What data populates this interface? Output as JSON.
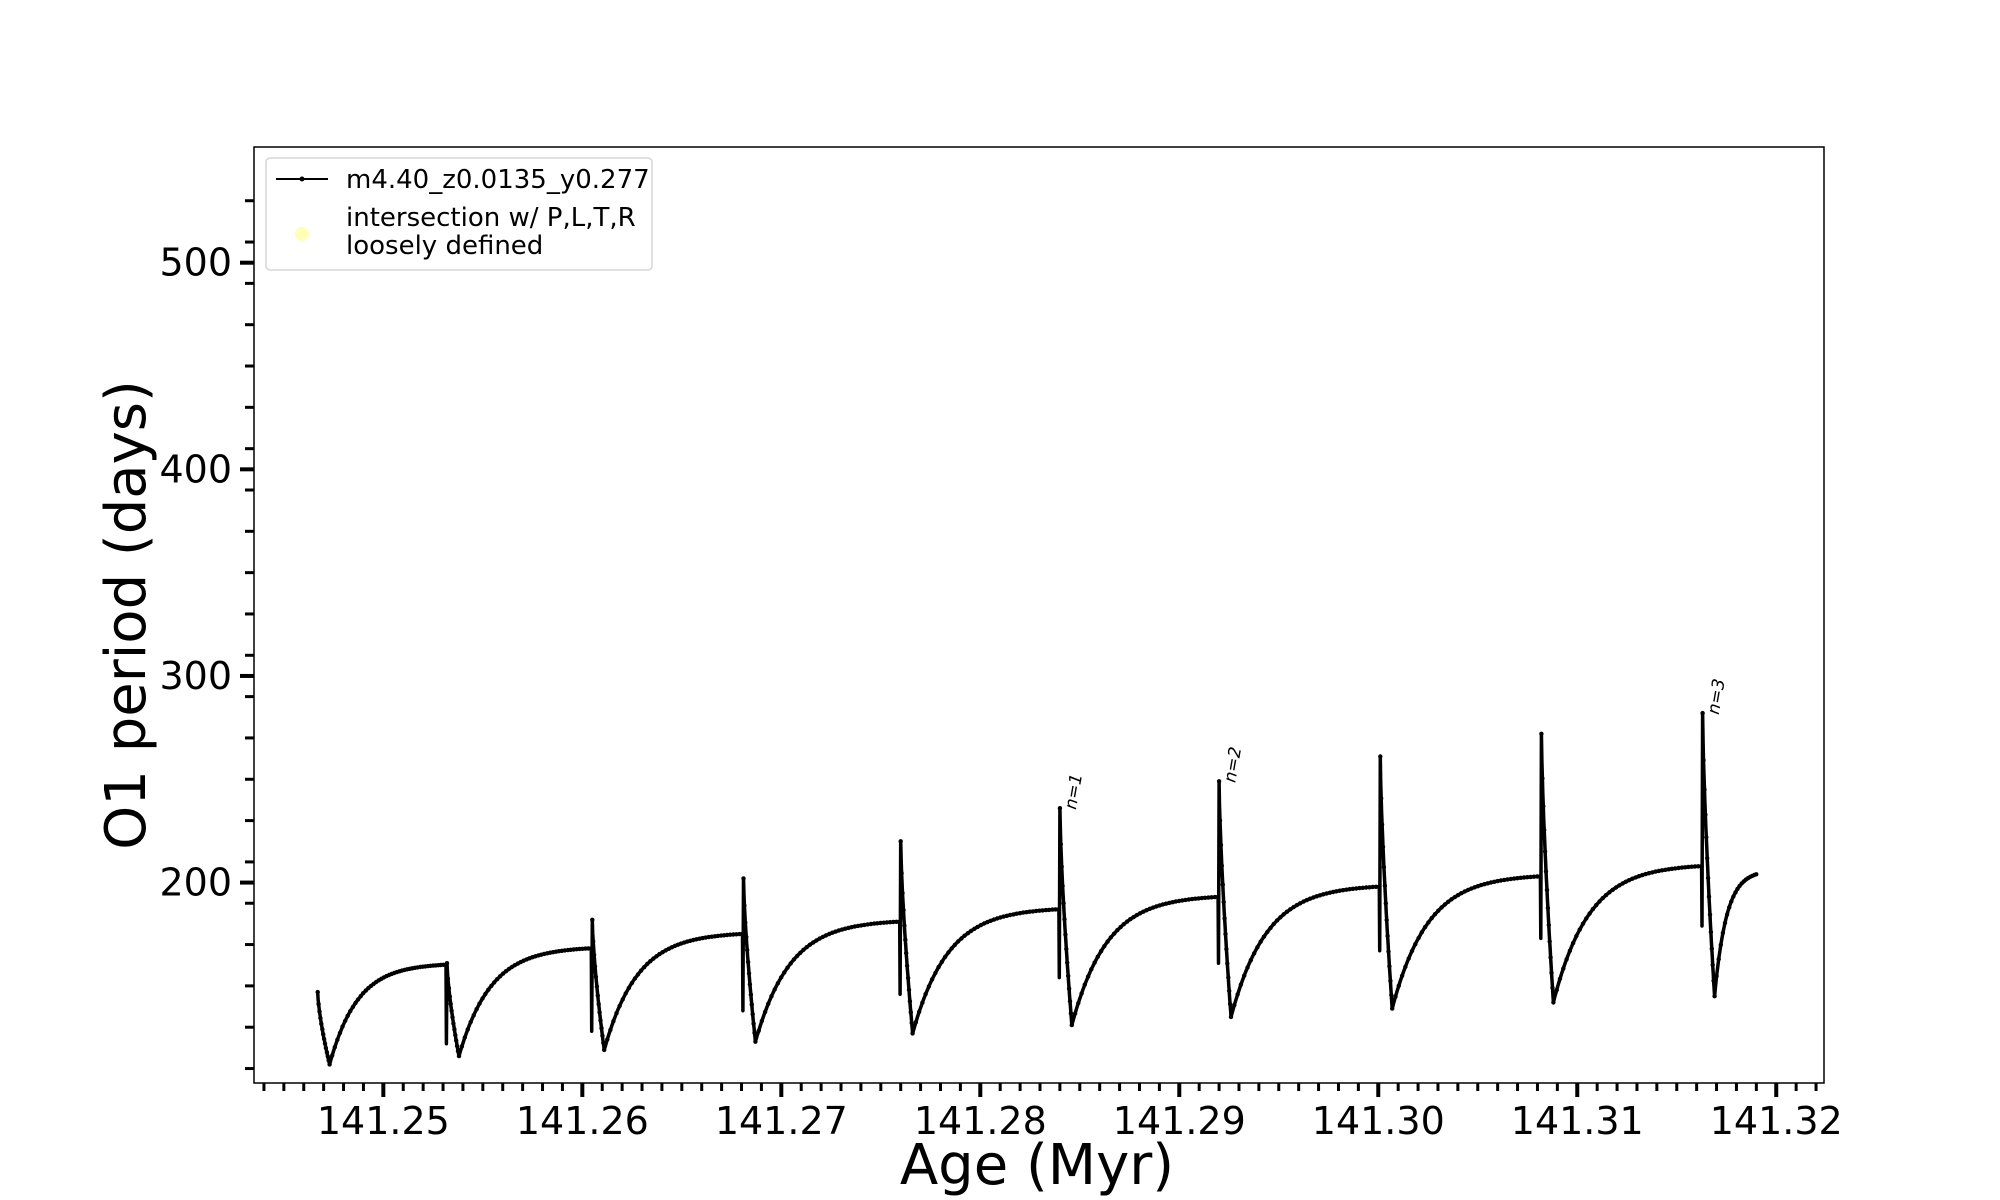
{
  "chart_data": {
    "type": "line",
    "title": "",
    "xlabel": "Age (Myr)",
    "ylabel": "O1 period (days)",
    "xlim": [
      141.2435,
      141.3224
    ],
    "ylim": [
      103,
      556
    ],
    "x_ticks": [
      141.25,
      141.26,
      141.27,
      141.28,
      141.29,
      141.3,
      141.31,
      141.32
    ],
    "x_tick_labels": [
      "141.25",
      "141.26",
      "141.27",
      "141.28",
      "141.29",
      "141.30",
      "141.31",
      "141.32"
    ],
    "y_ticks": [
      200,
      300,
      400,
      500
    ],
    "y_tick_labels": [
      "200",
      "300",
      "400",
      "500"
    ],
    "grid": false,
    "legend_position": "top-left",
    "legend": [
      {
        "label": "m4.40_z0.0135_y0.277",
        "marker": "line-dot",
        "color": "#000000"
      },
      {
        "label_lines": [
          "intersection w/ P,L,T,R",
          "loosely defined"
        ],
        "marker": "circle",
        "color": "#ffff99"
      }
    ],
    "series": [
      {
        "name": "m4.40_z0.0135_y0.277",
        "color": "#000000",
        "pulses": [
          {
            "start": 141.2467,
            "end": 141.2532,
            "peak": 147,
            "trough": 112,
            "plateau": 161,
            "drop": 122
          },
          {
            "start": 141.2532,
            "end": 141.2605,
            "peak": 161,
            "trough": 116,
            "plateau": 169,
            "drop": 128
          },
          {
            "start": 141.2605,
            "end": 141.2681,
            "peak": 182,
            "trough": 119,
            "plateau": 176,
            "drop": 138
          },
          {
            "start": 141.2681,
            "end": 141.276,
            "peak": 202,
            "trough": 123,
            "plateau": 182,
            "drop": 146
          },
          {
            "start": 141.276,
            "end": 141.284,
            "peak": 220,
            "trough": 127,
            "plateau": 188,
            "drop": 154
          },
          {
            "start": 141.284,
            "end": 141.292,
            "peak": 236,
            "trough": 131,
            "plateau": 194,
            "drop": 161
          },
          {
            "start": 141.292,
            "end": 141.3001,
            "peak": 249,
            "trough": 135,
            "plateau": 199,
            "drop": 167
          },
          {
            "start": 141.3001,
            "end": 141.3082,
            "peak": 261,
            "trough": 139,
            "plateau": 204,
            "drop": 173
          },
          {
            "start": 141.3082,
            "end": 141.3163,
            "peak": 272,
            "trough": 142,
            "plateau": 209,
            "drop": 179
          },
          {
            "start": 141.3163,
            "end": 141.319,
            "peak": 282,
            "trough": 145,
            "plateau": null,
            "drop": null,
            "final": 204
          }
        ]
      }
    ],
    "annotations": [
      {
        "text": "n=1",
        "x": 141.2841,
        "y": 237
      },
      {
        "text": "n=2",
        "x": 141.2921,
        "y": 250
      },
      {
        "text": "n=3",
        "x": 141.3164,
        "y": 283
      }
    ]
  }
}
